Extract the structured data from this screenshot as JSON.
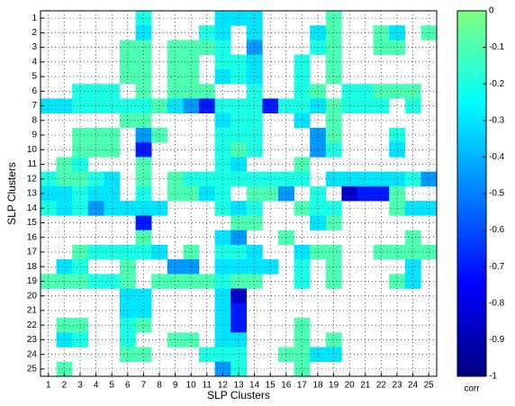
{
  "chart_data": {
    "type": "heatmap",
    "x_label": "SLP Clusters",
    "y_label": "SLP Clusters",
    "colorbar_label": "corr",
    "x": [
      1,
      2,
      3,
      4,
      5,
      6,
      7,
      8,
      9,
      10,
      11,
      12,
      13,
      14,
      15,
      16,
      17,
      18,
      19,
      20,
      21,
      22,
      23,
      24,
      25
    ],
    "y": [
      1,
      2,
      3,
      4,
      5,
      6,
      7,
      8,
      9,
      10,
      11,
      12,
      13,
      14,
      15,
      16,
      17,
      18,
      19,
      20,
      21,
      22,
      23,
      24,
      25
    ],
    "z": [
      [
        null,
        null,
        null,
        null,
        null,
        null,
        -0.2,
        null,
        null,
        null,
        null,
        -0.3,
        -0.3,
        -0.3,
        null,
        null,
        null,
        null,
        -0.1,
        null,
        null,
        null,
        null,
        null,
        null
      ],
      [
        null,
        null,
        null,
        null,
        null,
        null,
        -0.3,
        null,
        null,
        null,
        -0.2,
        -0.3,
        null,
        -0.3,
        null,
        null,
        null,
        -0.3,
        -0.1,
        null,
        null,
        -0.1,
        -0.3,
        null,
        -0.1
      ],
      [
        null,
        null,
        null,
        null,
        null,
        -0.1,
        -0.1,
        null,
        -0.1,
        -0.1,
        -0.1,
        -0.2,
        null,
        -0.45,
        null,
        null,
        null,
        -0.2,
        -0.1,
        null,
        null,
        -0.1,
        -0.1,
        null,
        null
      ],
      [
        null,
        null,
        null,
        null,
        null,
        -0.1,
        -0.1,
        null,
        -0.1,
        -0.1,
        null,
        -0.2,
        -0.2,
        -0.3,
        null,
        null,
        -0.2,
        null,
        -0.1,
        null,
        null,
        null,
        null,
        null,
        null
      ],
      [
        null,
        null,
        null,
        null,
        null,
        -0.1,
        -0.1,
        null,
        -0.1,
        -0.1,
        null,
        -0.3,
        -0.2,
        -0.3,
        null,
        null,
        -0.2,
        null,
        -0.1,
        null,
        null,
        null,
        null,
        null,
        null
      ],
      [
        null,
        null,
        -0.2,
        -0.2,
        -0.2,
        null,
        -0.1,
        null,
        -0.1,
        -0.1,
        -0.1,
        null,
        null,
        -0.2,
        null,
        null,
        -0.2,
        -0.1,
        null,
        -0.2,
        -0.2,
        -0.1,
        -0.1,
        -0.1,
        null
      ],
      [
        -0.3,
        -0.3,
        -0.2,
        -0.2,
        -0.2,
        -0.2,
        -0.2,
        -0.1,
        -0.3,
        -0.45,
        -0.7,
        -0.2,
        -0.2,
        -0.2,
        -0.7,
        -0.2,
        -0.2,
        -0.3,
        -0.1,
        -0.2,
        -0.2,
        -0.2,
        null,
        -0.2,
        null
      ],
      [
        null,
        null,
        null,
        null,
        null,
        -0.1,
        -0.1,
        null,
        null,
        null,
        null,
        -0.3,
        -0.2,
        -0.2,
        null,
        null,
        -0.3,
        null,
        -0.1,
        null,
        null,
        null,
        null,
        null,
        null
      ],
      [
        null,
        null,
        -0.1,
        -0.1,
        -0.1,
        null,
        -0.45,
        -0.1,
        null,
        null,
        null,
        -0.2,
        -0.2,
        -0.2,
        null,
        null,
        null,
        -0.45,
        -0.1,
        null,
        null,
        null,
        -0.2,
        null,
        null
      ],
      [
        null,
        null,
        -0.1,
        -0.1,
        -0.1,
        null,
        -0.7,
        null,
        null,
        null,
        null,
        -0.2,
        -0.1,
        -0.2,
        null,
        null,
        null,
        -0.45,
        -0.2,
        null,
        null,
        null,
        -0.3,
        null,
        null
      ],
      [
        null,
        -0.1,
        -0.2,
        null,
        null,
        null,
        -0.1,
        null,
        null,
        null,
        null,
        -0.2,
        -0.3,
        null,
        null,
        null,
        -0.1,
        null,
        null,
        null,
        null,
        null,
        null,
        null,
        null
      ],
      [
        -0.2,
        -0.1,
        -0.1,
        -0.2,
        -0.3,
        null,
        -0.1,
        null,
        -0.1,
        -0.2,
        -0.2,
        -0.2,
        -0.2,
        -0.2,
        -0.2,
        -0.2,
        -0.2,
        null,
        -0.3,
        -0.3,
        -0.3,
        -0.3,
        -0.3,
        -0.2,
        -0.45
      ],
      [
        -0.3,
        -0.3,
        -0.2,
        -0.3,
        -0.3,
        null,
        -0.2,
        null,
        -0.1,
        -0.1,
        -0.3,
        -0.2,
        null,
        -0.1,
        -0.1,
        -0.45,
        null,
        -0.2,
        null,
        -0.85,
        -0.7,
        -0.7,
        -0.1,
        null,
        null
      ],
      [
        -0.2,
        -0.3,
        -0.2,
        -0.45,
        -0.3,
        -0.3,
        -0.3,
        -0.3,
        null,
        null,
        null,
        -0.2,
        -0.3,
        -0.2,
        null,
        null,
        -0.1,
        -0.2,
        -0.2,
        null,
        null,
        null,
        -0.1,
        -0.3,
        -0.3
      ],
      [
        null,
        null,
        null,
        null,
        null,
        null,
        -0.7,
        null,
        null,
        null,
        null,
        null,
        -0.1,
        -0.1,
        null,
        null,
        null,
        -0.3,
        -0.1,
        null,
        null,
        null,
        null,
        null,
        null
      ],
      [
        null,
        null,
        null,
        null,
        null,
        null,
        -0.1,
        null,
        null,
        null,
        null,
        -0.3,
        -0.45,
        null,
        null,
        -0.1,
        null,
        null,
        null,
        null,
        null,
        null,
        null,
        -0.1,
        null
      ],
      [
        null,
        null,
        -0.1,
        -0.2,
        -0.2,
        -0.2,
        -0.2,
        -0.3,
        null,
        -0.1,
        null,
        -0.2,
        -0.2,
        -0.3,
        null,
        null,
        -0.3,
        -0.1,
        -0.1,
        null,
        null,
        -0.1,
        -0.1,
        -0.1,
        -0.1
      ],
      [
        null,
        -0.3,
        -0.2,
        null,
        null,
        -0.1,
        null,
        null,
        -0.45,
        -0.45,
        null,
        -0.3,
        -0.3,
        -0.3,
        -0.3,
        null,
        -0.2,
        null,
        -0.1,
        null,
        null,
        null,
        null,
        -0.3,
        null
      ],
      [
        -0.1,
        -0.1,
        -0.1,
        -0.2,
        -0.2,
        -0.1,
        null,
        -0.1,
        -0.1,
        -0.1,
        -0.1,
        -0.2,
        -0.1,
        -0.1,
        null,
        null,
        -0.2,
        null,
        -0.1,
        null,
        null,
        null,
        -0.1,
        -0.3,
        null
      ],
      [
        null,
        null,
        null,
        null,
        null,
        -0.3,
        -0.3,
        null,
        null,
        null,
        null,
        -0.3,
        -0.85,
        null,
        null,
        null,
        null,
        null,
        null,
        null,
        null,
        null,
        null,
        null,
        null
      ],
      [
        null,
        null,
        null,
        null,
        null,
        -0.3,
        -0.3,
        null,
        null,
        null,
        null,
        -0.3,
        -0.7,
        null,
        null,
        null,
        null,
        null,
        null,
        null,
        null,
        null,
        null,
        null,
        null
      ],
      [
        null,
        -0.1,
        -0.1,
        null,
        null,
        -0.2,
        -0.1,
        null,
        null,
        null,
        null,
        -0.3,
        -0.7,
        null,
        null,
        null,
        -0.1,
        null,
        null,
        null,
        null,
        null,
        null,
        null,
        null
      ],
      [
        null,
        -0.3,
        -0.2,
        null,
        null,
        -0.2,
        null,
        null,
        -0.1,
        -0.1,
        null,
        -0.3,
        -0.3,
        null,
        null,
        null,
        -0.1,
        null,
        -0.1,
        null,
        null,
        null,
        null,
        null,
        null
      ],
      [
        null,
        null,
        null,
        null,
        null,
        -0.1,
        -0.1,
        null,
        null,
        null,
        -0.2,
        -0.2,
        -0.2,
        null,
        null,
        -0.1,
        -0.1,
        -0.3,
        -0.3,
        null,
        null,
        null,
        null,
        null,
        null
      ],
      [
        null,
        -0.1,
        null,
        null,
        null,
        null,
        null,
        null,
        null,
        null,
        null,
        -0.45,
        -0.2,
        null,
        null,
        null,
        -0.1,
        null,
        null,
        null,
        null,
        null,
        null,
        null,
        null
      ]
    ],
    "clim": [
      -1,
      0
    ],
    "cticks": [
      0,
      -0.1,
      -0.2,
      -0.3,
      -0.4,
      -0.5,
      -0.6,
      -0.7,
      -0.8,
      -0.9,
      -1
    ],
    "grid": true
  }
}
